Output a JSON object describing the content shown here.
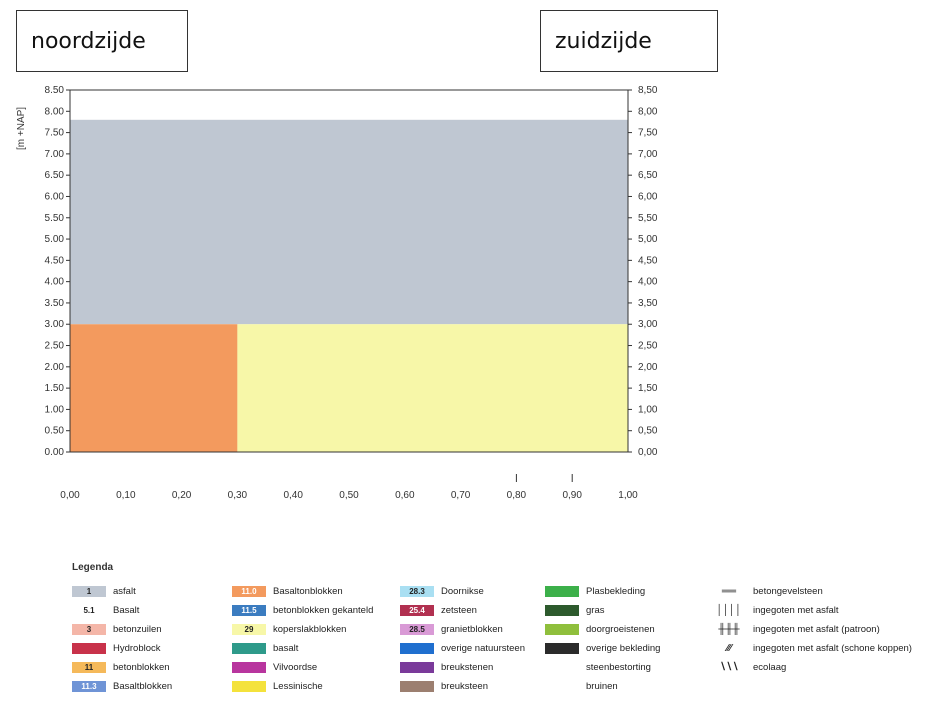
{
  "sides": {
    "north": "noordzijde",
    "south": "zuidzijde"
  },
  "chart_data": {
    "type": "area",
    "ylabel": "[m +NAP]",
    "y_left_ticks": [
      "0.00",
      "0.50",
      "1.00",
      "1.50",
      "2.00",
      "2.50",
      "3.00",
      "3.50",
      "4.00",
      "4.50",
      "5.00",
      "5.50",
      "6.00",
      "6.50",
      "7.00",
      "7.50",
      "8.00",
      "8.50"
    ],
    "y_right_ticks": [
      "0,00",
      "0,50",
      "1,00",
      "1,50",
      "2,00",
      "2,50",
      "3,00",
      "3,50",
      "4,00",
      "4,50",
      "5,00",
      "5,50",
      "6,00",
      "6,50",
      "7,00",
      "7,50",
      "8,00",
      "8,50"
    ],
    "x_ticks": [
      "0,00",
      "0,10",
      "0,20",
      "0,30",
      "0,40",
      "0,50",
      "0,60",
      "0,70",
      "0,80",
      "0,90",
      "1,00"
    ],
    "ylim": [
      0,
      8.5
    ],
    "xlim": [
      0,
      1.0
    ],
    "regions": [
      {
        "x0": 0.0,
        "x1": 1.0,
        "y0": 3.0,
        "y1": 7.8,
        "color": "#bfc7d2"
      },
      {
        "x0": 0.0,
        "x1": 0.3,
        "y0": 0.0,
        "y1": 3.0,
        "color": "#f39a5e"
      },
      {
        "x0": 0.3,
        "x1": 1.0,
        "y0": 0.0,
        "y1": 3.0,
        "color": "#f7f7a8"
      }
    ]
  },
  "legend": {
    "title": "Legenda",
    "items": [
      {
        "code": "1",
        "label": "asfalt",
        "color": "#bfc7d2"
      },
      {
        "code": "5.1",
        "label": "Basalt",
        "color": ""
      },
      {
        "code": "3",
        "label": "betonzuilen",
        "color": "#f4b6a8"
      },
      {
        "code": "",
        "label": "Hydroblock",
        "color": "#c8324a"
      },
      {
        "code": "11",
        "label": "betonblokken",
        "color": "#f5b95a"
      },
      {
        "code": "11.3",
        "label": "Basaltblokken",
        "color": "#6f94d6"
      },
      {
        "code": "11.0",
        "label": "Basaltonblokken",
        "color": "#f39a5e"
      },
      {
        "code": "11.5",
        "label": "betonblokken gekanteld",
        "color": "#3b7cc0"
      },
      {
        "code": "29",
        "label": "koperslakblokken",
        "color": "#f7f7a8"
      },
      {
        "code": "",
        "label": "basalt",
        "color": "#2e9a8a"
      },
      {
        "code": "",
        "label": "Vilvoordse",
        "color": "#b8359e"
      },
      {
        "code": "",
        "label": "Lessinische",
        "color": "#f4e23c"
      },
      {
        "code": "28.3",
        "label": "Doornikse",
        "color": "#a9dff2"
      },
      {
        "code": "25.4",
        "label": "zetsteen",
        "color": "#b13050"
      },
      {
        "code": "28.5",
        "label": "granietblokken",
        "color": "#d99ad6"
      },
      {
        "code": "",
        "label": "overige natuursteen",
        "color": "#1f6fcf"
      },
      {
        "code": "",
        "label": "breukstenen",
        "color": "#7a3a9a"
      },
      {
        "code": "",
        "label": "breuksteen",
        "color": "#9c7f70"
      },
      {
        "code": "",
        "label": "Plasbekleding",
        "color": "#3cb04a"
      },
      {
        "code": "",
        "label": "gras",
        "color": "#2d5a2d"
      },
      {
        "code": "",
        "label": "doorgroeistenen",
        "color": "#8fbf3c"
      },
      {
        "code": "",
        "label": "overige bekleding",
        "color": "#2b2b2b"
      },
      {
        "code": "",
        "label": "steenbestorting",
        "color": ""
      },
      {
        "code": "",
        "label": "bruinen",
        "color": ""
      },
      {
        "code": "",
        "label": "betongevelsteen",
        "color": ""
      },
      {
        "code": "",
        "label": "ingegoten met asfalt",
        "color": ""
      },
      {
        "code": "",
        "label": "ingegoten met asfalt (patroon)",
        "color": ""
      },
      {
        "code": "",
        "label": "ingegoten met asfalt (schone koppen)",
        "color": ""
      },
      {
        "code": "",
        "label": "ecolaag",
        "color": ""
      }
    ]
  }
}
